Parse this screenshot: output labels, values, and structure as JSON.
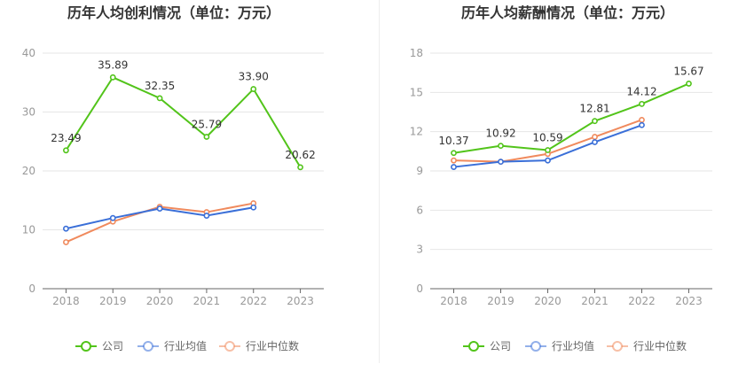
{
  "colors": {
    "company": "#52c41a",
    "industry_avg": "#3a6fd8",
    "industry_median": "#f08a5d",
    "axis": "#999999",
    "grid": "#e6e6e6",
    "title": "#333333"
  },
  "legend": {
    "company": "公司",
    "industry_avg": "行业均值",
    "industry_median": "行业中位数"
  },
  "chart_data": [
    {
      "type": "line",
      "title": "历年人均创利情况（单位：万元）",
      "categories": [
        "2018",
        "2019",
        "2020",
        "2021",
        "2022",
        "2023"
      ],
      "ylim": [
        0,
        40
      ],
      "yticks": [
        0,
        10,
        20,
        30,
        40
      ],
      "grid": true,
      "legend_position": "bottom",
      "series": [
        {
          "name": "公司",
          "key": "company",
          "values": [
            23.49,
            35.89,
            32.35,
            25.79,
            33.9,
            20.62
          ],
          "labels": [
            "23.49",
            "35.89",
            "32.35",
            "25.79",
            "33.90",
            "20.62"
          ]
        },
        {
          "name": "行业均值",
          "key": "industry_avg",
          "values": [
            10.2,
            12.0,
            13.6,
            12.4,
            13.8,
            null
          ]
        },
        {
          "name": "行业中位数",
          "key": "industry_median",
          "values": [
            7.9,
            11.4,
            13.9,
            13.0,
            14.5,
            null
          ]
        }
      ]
    },
    {
      "type": "line",
      "title": "历年人均薪酬情况（单位：万元）",
      "categories": [
        "2018",
        "2019",
        "2020",
        "2021",
        "2022",
        "2023"
      ],
      "ylim": [
        0,
        18
      ],
      "yticks": [
        0,
        3,
        6,
        9,
        12,
        15,
        18
      ],
      "grid": true,
      "legend_position": "bottom",
      "series": [
        {
          "name": "公司",
          "key": "company",
          "values": [
            10.37,
            10.92,
            10.59,
            12.81,
            14.12,
            15.67
          ],
          "labels": [
            "10.37",
            "10.92",
            "10.59",
            "12.81",
            "14.12",
            "15.67"
          ]
        },
        {
          "name": "行业均值",
          "key": "industry_avg",
          "values": [
            9.3,
            9.7,
            9.8,
            11.2,
            12.5,
            null
          ]
        },
        {
          "name": "行业中位数",
          "key": "industry_median",
          "values": [
            9.8,
            9.7,
            10.3,
            11.6,
            12.9,
            null
          ]
        }
      ]
    }
  ]
}
